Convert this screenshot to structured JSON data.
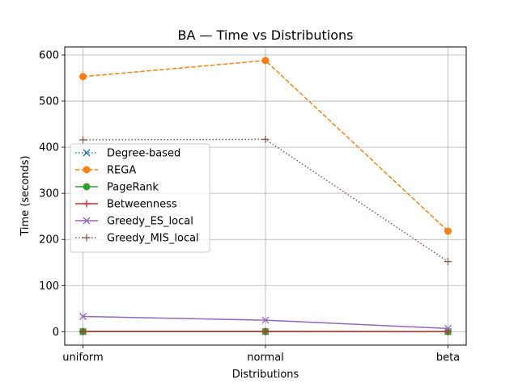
{
  "chart_data": {
    "type": "line",
    "title": "BA — Time vs Distributions",
    "xlabel": "Distributions",
    "ylabel": "Time (seconds)",
    "categories": [
      "uniform",
      "normal",
      "beta"
    ],
    "ylim": [
      -29.2,
      617.5
    ],
    "yticks": [
      0,
      100,
      200,
      300,
      400,
      500,
      600
    ],
    "grid": true,
    "legend_position": "center-left",
    "series": [
      {
        "name": "Degree-based",
        "values": [
          0.1,
          0.1,
          0.1
        ],
        "color": "#1f77b4",
        "dash": "dotted",
        "marker": "x"
      },
      {
        "name": "REGA",
        "values": [
          553,
          588,
          218
        ],
        "color": "#ff7f0e",
        "dash": "dashed",
        "marker": "circle"
      },
      {
        "name": "PageRank",
        "values": [
          0.3,
          0.3,
          0.2
        ],
        "color": "#2ca02c",
        "dash": "solid",
        "marker": "circle"
      },
      {
        "name": "Betweenness",
        "values": [
          0.5,
          0.5,
          0.4
        ],
        "color": "#d62728",
        "dash": "solid",
        "marker": "plus"
      },
      {
        "name": "Greedy_ES_local",
        "values": [
          33,
          25,
          7
        ],
        "color": "#9467bd",
        "dash": "solid",
        "marker": "x"
      },
      {
        "name": "Greedy_MIS_local",
        "values": [
          416,
          417,
          152
        ],
        "color": "#8c564b",
        "dash": "dotted",
        "marker": "plus"
      }
    ]
  }
}
